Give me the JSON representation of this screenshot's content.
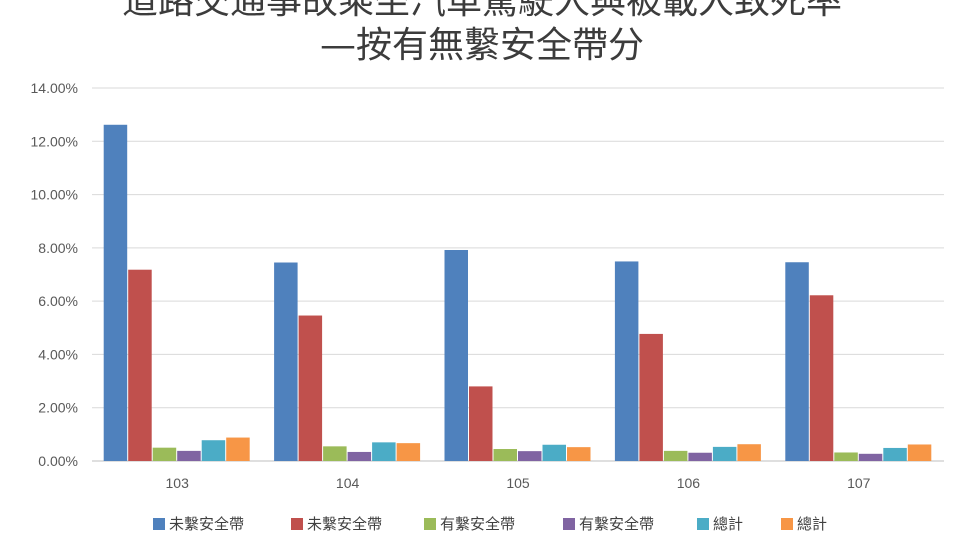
{
  "chart_data": {
    "type": "bar",
    "title_lines": [
      "道路交通事故乘坐汽車駕駛人與被載人致死率",
      "—按有無繫安全帶分"
    ],
    "categories": [
      "103",
      "104",
      "105",
      "106",
      "107"
    ],
    "series": [
      {
        "name": "未繫安全帶",
        "color": "#4f81bd",
        "values": [
          12.62,
          7.45,
          7.92,
          7.49,
          7.46
        ]
      },
      {
        "name": "未繫安全帶",
        "color": "#c0504d",
        "values": [
          7.18,
          5.46,
          2.8,
          4.77,
          6.22
        ]
      },
      {
        "name": "有繫安全帶",
        "color": "#9bbb59",
        "values": [
          0.5,
          0.55,
          0.45,
          0.38,
          0.32
        ]
      },
      {
        "name": "有繫安全帶",
        "color": "#8064a2",
        "values": [
          0.38,
          0.34,
          0.37,
          0.31,
          0.27
        ]
      },
      {
        "name": "總計",
        "color": "#4bacc6",
        "values": [
          0.78,
          0.7,
          0.61,
          0.53,
          0.49
        ]
      },
      {
        "name": "總計",
        "color": "#f79646",
        "values": [
          0.88,
          0.67,
          0.52,
          0.63,
          0.62
        ]
      }
    ],
    "ylim": [
      0,
      14
    ],
    "yticks": [
      "0.00%",
      "2.00%",
      "4.00%",
      "6.00%",
      "8.00%",
      "10.00%",
      "12.00%",
      "14.00%"
    ],
    "grid": true,
    "legend_position": "bottom"
  }
}
